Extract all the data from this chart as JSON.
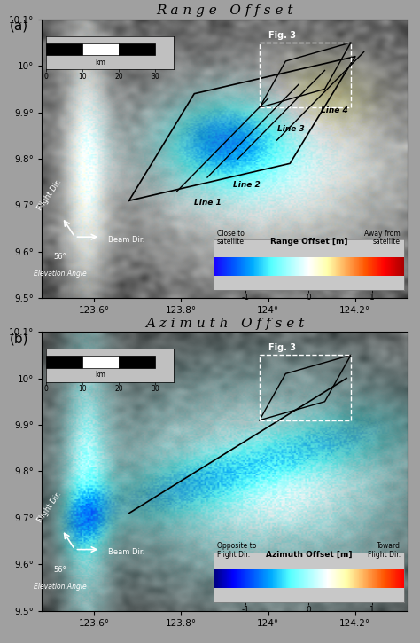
{
  "title_a": "R a n g e   O f f s e t",
  "title_b": "A z i m u t h   O f f s e t",
  "panel_a_label": "(a)",
  "panel_b_label": "(b)",
  "xlim": [
    123.48,
    124.32
  ],
  "ylim": [
    9.5,
    10.1
  ],
  "xticks": [
    123.6,
    123.8,
    124.0,
    124.2
  ],
  "yticks": [
    9.5,
    9.6,
    9.7,
    9.8,
    9.9,
    10.0,
    10.1
  ],
  "xlabel_ticks": [
    "123.6°",
    "123.8°",
    "124°",
    "124.2°"
  ],
  "ylabel_ticks": [
    "9.5°",
    "9.6°",
    "9.7°",
    "9.8°",
    "9.9°",
    "10°",
    "10.1°"
  ],
  "colorbar_ticks": [
    -1,
    0,
    1
  ],
  "colorbar_label_a": "Range Offset [m]",
  "colorbar_left_a": "Close to\nsatellite",
  "colorbar_right_a": "Away from\nsatellite",
  "colorbar_label_b": "Azimuth Offset [m]",
  "colorbar_left_b": "Opposite to\nFlight Dir.",
  "colorbar_right_b": "Toward\nFlight Dir.",
  "bg_color": "#606060",
  "legend_bg": "#c8c8c8",
  "elevation_angle": "56°",
  "line_labels": [
    "Line 1",
    "Line 2",
    "Line 3",
    "Line 4"
  ],
  "fig_3_label": "Fig. 3"
}
